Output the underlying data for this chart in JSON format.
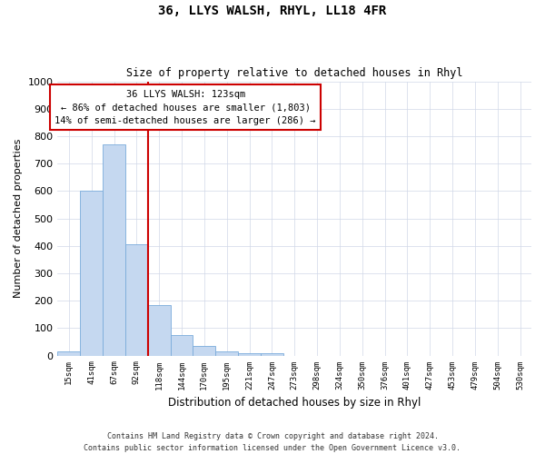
{
  "title": "36, LLYS WALSH, RHYL, LL18 4FR",
  "subtitle": "Size of property relative to detached houses in Rhyl",
  "xlabel": "Distribution of detached houses by size in Rhyl",
  "ylabel": "Number of detached properties",
  "categories": [
    "15sqm",
    "41sqm",
    "67sqm",
    "92sqm",
    "118sqm",
    "144sqm",
    "170sqm",
    "195sqm",
    "221sqm",
    "247sqm",
    "273sqm",
    "298sqm",
    "324sqm",
    "350sqm",
    "376sqm",
    "401sqm",
    "427sqm",
    "453sqm",
    "479sqm",
    "504sqm",
    "530sqm"
  ],
  "values": [
    15,
    600,
    770,
    405,
    185,
    75,
    35,
    15,
    10,
    10,
    0,
    0,
    0,
    0,
    0,
    0,
    0,
    0,
    0,
    0,
    0
  ],
  "bar_color": "#c5d8f0",
  "bar_edge_color": "#7aabdb",
  "grid_color": "#d0d8e8",
  "ylim": [
    0,
    1000
  ],
  "yticks": [
    0,
    100,
    200,
    300,
    400,
    500,
    600,
    700,
    800,
    900,
    1000
  ],
  "property_line_color": "#cc0000",
  "annotation_text": "36 LLYS WALSH: 123sqm\n← 86% of detached houses are smaller (1,803)\n14% of semi-detached houses are larger (286) →",
  "annotation_box_color": "#cc0000",
  "footer_line1": "Contains HM Land Registry data © Crown copyright and database right 2024.",
  "footer_line2": "Contains public sector information licensed under the Open Government Licence v3.0.",
  "background_color": "#ffffff",
  "fig_width": 6.0,
  "fig_height": 5.0,
  "dpi": 100
}
